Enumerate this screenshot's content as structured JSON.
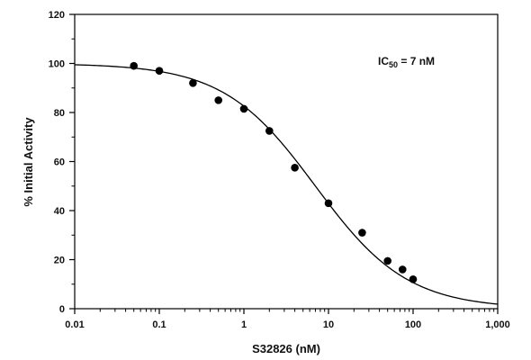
{
  "chart_data": {
    "type": "scatter",
    "xlabel": "S32826 (nM)",
    "ylabel": "% Initial Activity",
    "xscale": "log",
    "xlim": [
      0.01,
      1000
    ],
    "ylim": [
      0,
      120
    ],
    "xticks": [
      {
        "value": 0.01,
        "label": "0.01"
      },
      {
        "value": 0.1,
        "label": "0.1"
      },
      {
        "value": 1,
        "label": "1"
      },
      {
        "value": 10,
        "label": "10"
      },
      {
        "value": 100,
        "label": "100"
      },
      {
        "value": 1000,
        "label": "1,000"
      }
    ],
    "yticks": [
      {
        "value": 0,
        "label": "0"
      },
      {
        "value": 20,
        "label": "20"
      },
      {
        "value": 40,
        "label": "40"
      },
      {
        "value": 60,
        "label": "60"
      },
      {
        "value": 80,
        "label": "80"
      },
      {
        "value": 100,
        "label": "100"
      },
      {
        "value": 120,
        "label": "120"
      }
    ],
    "grid": false,
    "legend": "none",
    "points": [
      {
        "x": 0.05,
        "y": 99
      },
      {
        "x": 0.1,
        "y": 97
      },
      {
        "x": 0.25,
        "y": 92
      },
      {
        "x": 0.5,
        "y": 85
      },
      {
        "x": 1,
        "y": 81.5
      },
      {
        "x": 2,
        "y": 72.5
      },
      {
        "x": 4,
        "y": 57.5
      },
      {
        "x": 10,
        "y": 43
      },
      {
        "x": 25,
        "y": 31
      },
      {
        "x": 50,
        "y": 19.5
      },
      {
        "x": 75,
        "y": 16
      },
      {
        "x": 100,
        "y": 12
      }
    ],
    "fit": {
      "top": 100,
      "bottom": 0,
      "ic50": 7,
      "hill": 0.8
    },
    "annotation": {
      "text": "IC",
      "subscript": "50",
      "suffix": " = 7 nM"
    },
    "colors": {
      "marker": "#000000",
      "line": "#000000",
      "axis": "#000000"
    }
  }
}
